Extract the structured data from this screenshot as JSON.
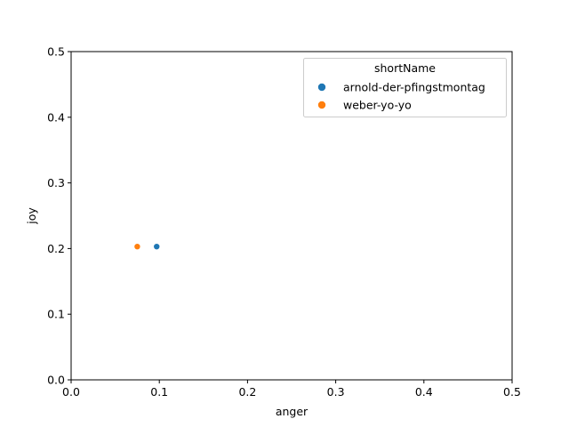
{
  "chart_data": {
    "type": "scatter",
    "title": "",
    "xlabel": "anger",
    "ylabel": "joy",
    "xlim": [
      0,
      0.5
    ],
    "ylim": [
      0,
      0.5
    ],
    "xticks": [
      "0.0",
      "0.1",
      "0.2",
      "0.3",
      "0.4",
      "0.5"
    ],
    "yticks": [
      "0.0",
      "0.1",
      "0.2",
      "0.3",
      "0.4",
      "0.5"
    ],
    "grid": false,
    "legend": {
      "title": "shortName",
      "placement": "top-right"
    },
    "series": [
      {
        "name": "arnold-der-pfingstmontag",
        "color": "#1f77b4",
        "points": [
          {
            "x": 0.097,
            "y": 0.203
          }
        ]
      },
      {
        "name": "weber-yo-yo",
        "color": "#ff7f0e",
        "points": [
          {
            "x": 0.075,
            "y": 0.203
          }
        ]
      }
    ]
  }
}
